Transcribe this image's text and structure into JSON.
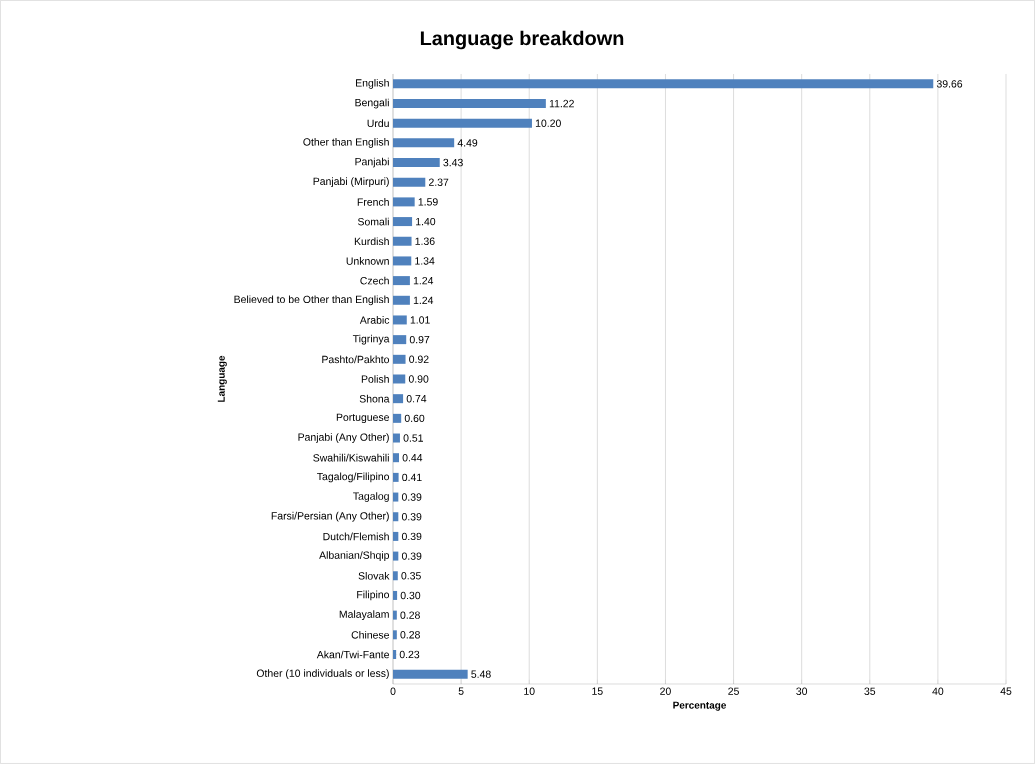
{
  "chart_data": {
    "type": "bar",
    "orientation": "horizontal",
    "title": "Language breakdown",
    "xlabel": "Percentage",
    "ylabel": "Language",
    "categories": [
      "English",
      "Bengali",
      "Urdu",
      "Other than English",
      "Panjabi",
      "Panjabi (Mirpuri)",
      "French",
      "Somali",
      "Kurdish",
      "Unknown",
      "Czech",
      "Believed to be Other than English",
      "Arabic",
      "Tigrinya",
      "Pashto/Pakhto",
      "Polish",
      "Shona",
      "Portuguese",
      "Panjabi (Any Other)",
      "Swahili/Kiswahili",
      "Tagalog/Filipino",
      "Tagalog",
      "Farsi/Persian (Any Other)",
      "Dutch/Flemish",
      "Albanian/Shqip",
      "Slovak",
      "Filipino",
      "Malayalam",
      "Chinese",
      "Akan/Twi-Fante",
      "Other (10 individuals or less)"
    ],
    "values": [
      39.66,
      11.22,
      10.2,
      4.49,
      3.43,
      2.37,
      1.59,
      1.4,
      1.36,
      1.34,
      1.24,
      1.24,
      1.01,
      0.97,
      0.92,
      0.9,
      0.74,
      0.6,
      0.51,
      0.44,
      0.41,
      0.39,
      0.39,
      0.39,
      0.39,
      0.35,
      0.3,
      0.28,
      0.28,
      0.23,
      5.48
    ],
    "value_labels": [
      "39.66",
      "11.22",
      "10.20",
      "4.49",
      "3.43",
      "2.37",
      "1.59",
      "1.40",
      "1.36",
      "1.34",
      "1.24",
      "1.24",
      "1.01",
      "0.97",
      "0.92",
      "0.90",
      "0.74",
      "0.60",
      "0.51",
      "0.44",
      "0.41",
      "0.39",
      "0.39",
      "0.39",
      "0.39",
      "0.35",
      "0.30",
      "0.28",
      "0.28",
      "0.23",
      "5.48"
    ],
    "color": "#4f81bd",
    "xlim": [
      0,
      45
    ],
    "xticks": [
      0,
      5,
      10,
      15,
      20,
      25,
      30,
      35,
      40,
      45
    ],
    "grid": "x"
  }
}
